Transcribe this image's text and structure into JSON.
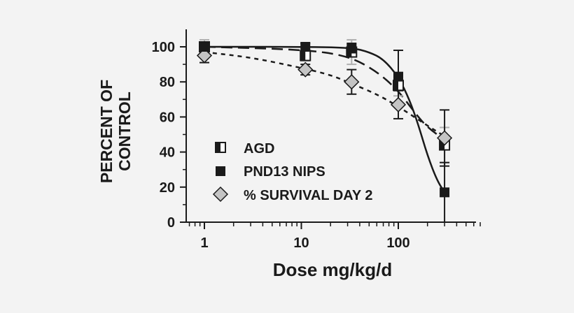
{
  "chart_data": {
    "type": "scatter",
    "title": "",
    "ylabel_lines": [
      "PERCENT OF",
      "CONTROL"
    ],
    "xlabel": "Dose mg/kg/d",
    "x_scale": "log",
    "xlim": [
      0.7,
      700
    ],
    "ylim": [
      0,
      110
    ],
    "x_ticks": [
      1,
      10,
      100
    ],
    "x_tick_labels": [
      "1",
      "10",
      "100"
    ],
    "y_ticks": [
      0,
      20,
      40,
      60,
      80,
      100
    ],
    "y_tick_labels": [
      "0",
      "20",
      "40",
      "60",
      "80",
      "100"
    ],
    "grid": false,
    "legend_position": "bottom-left",
    "series": [
      {
        "name": "AGD",
        "marker": "half-filled-square",
        "line_style": "long-dash",
        "points": [
          {
            "x": 1,
            "y": 100,
            "err": 4
          },
          {
            "x": 11,
            "y": 95,
            "err": 3
          },
          {
            "x": 33,
            "y": 97,
            "err": 7
          },
          {
            "x": 100,
            "y": 78,
            "err": 6
          },
          {
            "x": 300,
            "y": 44,
            "err": 10
          }
        ],
        "fit": [
          {
            "x": 1,
            "y": 100
          },
          {
            "x": 10,
            "y": 98.5
          },
          {
            "x": 30,
            "y": 95
          },
          {
            "x": 60,
            "y": 86
          },
          {
            "x": 100,
            "y": 75
          },
          {
            "x": 150,
            "y": 62
          },
          {
            "x": 200,
            "y": 54
          },
          {
            "x": 300,
            "y": 47
          }
        ]
      },
      {
        "name": "PND13 NIPS",
        "marker": "filled-square",
        "line_style": "solid",
        "points": [
          {
            "x": 1,
            "y": 100,
            "err": 2
          },
          {
            "x": 11,
            "y": 100,
            "err": 2
          },
          {
            "x": 33,
            "y": 99,
            "err": 3
          },
          {
            "x": 100,
            "y": 83,
            "err": 15
          },
          {
            "x": 300,
            "y": 17,
            "err": 17
          }
        ],
        "fit": [
          {
            "x": 1,
            "y": 100
          },
          {
            "x": 10,
            "y": 100
          },
          {
            "x": 33,
            "y": 99.5
          },
          {
            "x": 50,
            "y": 97
          },
          {
            "x": 70,
            "y": 93
          },
          {
            "x": 100,
            "y": 83
          },
          {
            "x": 130,
            "y": 70
          },
          {
            "x": 160,
            "y": 56
          },
          {
            "x": 200,
            "y": 38
          },
          {
            "x": 250,
            "y": 24
          },
          {
            "x": 300,
            "y": 17
          }
        ]
      },
      {
        "name": "% SURVIVAL DAY 2",
        "marker": "diamond",
        "line_style": "short-dash",
        "points": [
          {
            "x": 1,
            "y": 95,
            "err": 4
          },
          {
            "x": 11,
            "y": 87,
            "err": 3
          },
          {
            "x": 33,
            "y": 80,
            "err": 7
          },
          {
            "x": 100,
            "y": 67,
            "err": 8
          },
          {
            "x": 300,
            "y": 48,
            "err": 16
          }
        ],
        "fit": [
          {
            "x": 1,
            "y": 97
          },
          {
            "x": 3,
            "y": 94
          },
          {
            "x": 10,
            "y": 88
          },
          {
            "x": 20,
            "y": 84
          },
          {
            "x": 33,
            "y": 79
          },
          {
            "x": 60,
            "y": 73
          },
          {
            "x": 100,
            "y": 66
          },
          {
            "x": 200,
            "y": 55
          },
          {
            "x": 300,
            "y": 49
          }
        ]
      }
    ]
  },
  "colors": {
    "background": "#f3f3f3",
    "ink": "#1a1a1a",
    "diamond_fill": "#c4c4c4",
    "agd_error_bar": "#b0b0b0"
  }
}
